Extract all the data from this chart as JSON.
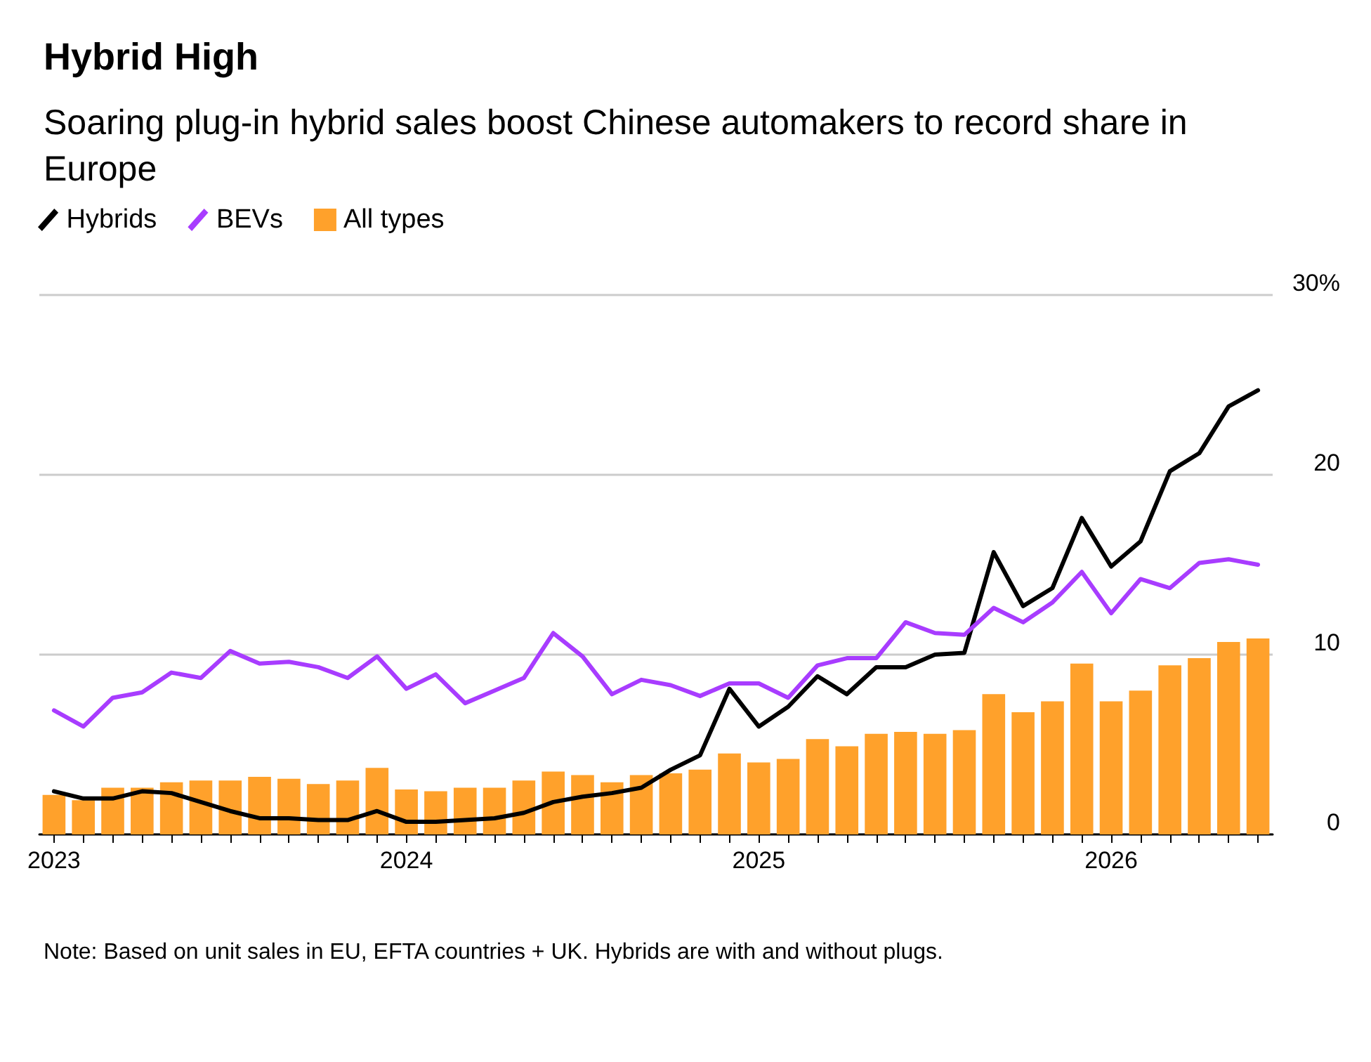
{
  "chart_data": {
    "type": "bar",
    "title": "Hybrid High",
    "subtitle": "Soaring plug-in hybrid sales boost Chinese automakers to record share in Europe",
    "categories": [
      "2023",
      null,
      null,
      null,
      null,
      null,
      null,
      null,
      null,
      null,
      null,
      null,
      "2024",
      null,
      null,
      null,
      null,
      null,
      null,
      null,
      null,
      null,
      null,
      null,
      "2025",
      null,
      null,
      null,
      null,
      null,
      null,
      null,
      null,
      null,
      null,
      null,
      "2026",
      null,
      null,
      null,
      null,
      null
    ],
    "series": [
      {
        "name": "Hybrids",
        "type": "line",
        "color": "#000000",
        "values": [
          2.4,
          2.0,
          2.0,
          2.4,
          2.3,
          1.8,
          1.3,
          0.9,
          0.9,
          0.8,
          0.8,
          1.3,
          0.7,
          0.7,
          0.8,
          0.9,
          1.2,
          1.8,
          2.1,
          2.3,
          2.6,
          3.6,
          4.4,
          8.1,
          6.0,
          7.1,
          8.8,
          7.8,
          9.3,
          9.3,
          10.0,
          10.1,
          15.7,
          12.7,
          13.7,
          17.6,
          14.9,
          16.3,
          20.2,
          21.2,
          23.8,
          24.7
        ]
      },
      {
        "name": "BEVs",
        "type": "line",
        "color": "#a83cff",
        "values": [
          6.9,
          6.0,
          7.6,
          7.9,
          9.0,
          8.7,
          10.2,
          9.5,
          9.6,
          9.3,
          8.7,
          9.9,
          8.1,
          8.9,
          7.3,
          8.0,
          8.7,
          11.2,
          9.9,
          7.8,
          8.6,
          8.3,
          7.7,
          8.4,
          8.4,
          7.6,
          9.4,
          9.8,
          9.8,
          11.8,
          11.2,
          11.1,
          12.6,
          11.8,
          12.9,
          14.6,
          12.3,
          14.2,
          13.7,
          15.1,
          15.3,
          15.0
        ]
      },
      {
        "name": "All types",
        "color": "#ffa12b",
        "values": [
          2.2,
          1.9,
          2.6,
          2.6,
          2.9,
          3.0,
          3.0,
          3.2,
          3.1,
          2.8,
          3.0,
          3.7,
          2.5,
          2.4,
          2.6,
          2.6,
          3.0,
          3.5,
          3.3,
          2.9,
          3.3,
          3.4,
          3.6,
          4.5,
          4.0,
          4.2,
          5.3,
          4.9,
          5.6,
          5.7,
          5.6,
          5.8,
          7.8,
          6.8,
          7.4,
          9.5,
          7.4,
          8.0,
          9.4,
          9.8,
          10.7,
          10.9
        ]
      }
    ],
    "ylim": [
      0,
      30
    ],
    "yticks": [
      0,
      10,
      20,
      {
        "value": 30,
        "label": "30%"
      }
    ],
    "grid": "y",
    "legend": "top left",
    "marker": "none",
    "line_style": "solid",
    "annotations": [
      "Note: Based on unit sales in EU, EFTA countries + UK. Hybrids are with and without plugs."
    ]
  }
}
